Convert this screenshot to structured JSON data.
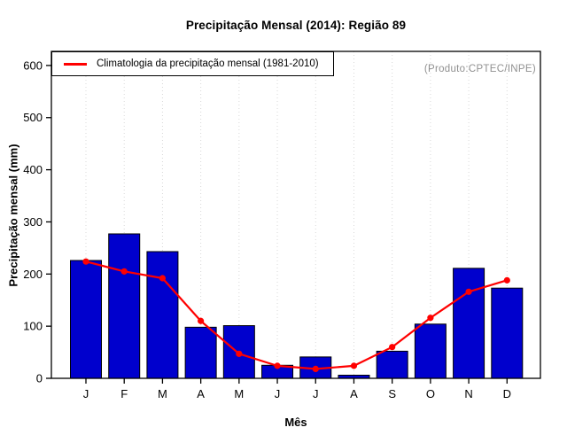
{
  "title": "Precipitação Mensal (2014): Região 89",
  "annotation": "(Produto:CPTEC/INPE)",
  "legend": {
    "label": "Climatologia da precipitação mensal (1981-2010)"
  },
  "axes": {
    "xlabel": "Mês",
    "ylabel": "Precipitação mensal (mm)"
  },
  "colors": {
    "bar": "#0000CD",
    "bar_border": "#000000",
    "line": "#FF0000",
    "grid": "#D8D8D8",
    "axis": "#000000",
    "annotation_text": "#909090"
  },
  "chart_data": {
    "type": "bar",
    "title": "Precipitação Mensal (2014): Região 89",
    "xlabel": "Mês",
    "ylabel": "Precipitação mensal (mm)",
    "categories": [
      "J",
      "F",
      "M",
      "A",
      "M",
      "J",
      "J",
      "A",
      "S",
      "O",
      "N",
      "D"
    ],
    "series": [
      {
        "name": "Precipitação mensal (2014)",
        "type": "bar",
        "color": "#0000CD",
        "values": [
          226,
          277,
          243,
          98,
          101,
          25,
          41,
          6,
          52,
          104,
          211,
          173
        ]
      },
      {
        "name": "Climatologia da precipitação mensal (1981-2010)",
        "type": "line",
        "color": "#FF0000",
        "values": [
          224,
          205,
          192,
          110,
          47,
          24,
          18,
          24,
          60,
          116,
          166,
          188
        ]
      }
    ],
    "ylim": [
      0,
      627
    ],
    "y_ticks": [
      0,
      100,
      200,
      300,
      400,
      500,
      600
    ],
    "grid": "vertical-dotted",
    "legend_position": "top-left",
    "annotation": "(Produto:CPTEC/INPE)"
  }
}
